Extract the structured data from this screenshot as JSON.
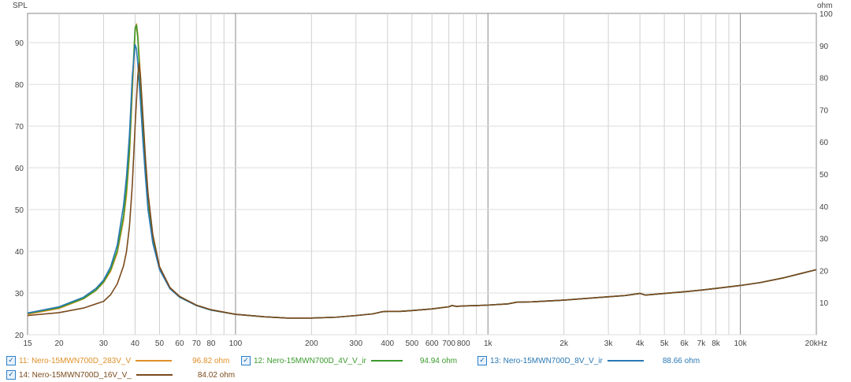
{
  "chart_data": {
    "type": "line",
    "xscale": "log",
    "xlim": [
      15,
      20000
    ],
    "ylim": [
      20,
      97
    ],
    "y2lim": [
      0,
      100
    ],
    "ylabel": "SPL",
    "y2label": "ohm",
    "xticks": [
      {
        "v": 15,
        "t": "15"
      },
      {
        "v": 20,
        "t": "20"
      },
      {
        "v": 30,
        "t": "30"
      },
      {
        "v": 40,
        "t": "40"
      },
      {
        "v": 50,
        "t": "50"
      },
      {
        "v": 60,
        "t": "60"
      },
      {
        "v": 70,
        "t": "70"
      },
      {
        "v": 80,
        "t": "80"
      },
      {
        "v": 100,
        "t": "100"
      },
      {
        "v": 200,
        "t": "200"
      },
      {
        "v": 300,
        "t": "300"
      },
      {
        "v": 400,
        "t": "400"
      },
      {
        "v": 500,
        "t": "500"
      },
      {
        "v": 600,
        "t": "600"
      },
      {
        "v": 700,
        "t": "700"
      },
      {
        "v": 800,
        "t": "800"
      },
      {
        "v": 1000,
        "t": "1k"
      },
      {
        "v": 2000,
        "t": "2k"
      },
      {
        "v": 3000,
        "t": "3k"
      },
      {
        "v": 4000,
        "t": "4k"
      },
      {
        "v": 5000,
        "t": "5k"
      },
      {
        "v": 6000,
        "t": "6k"
      },
      {
        "v": 7000,
        "t": "7k"
      },
      {
        "v": 8000,
        "t": "8k"
      },
      {
        "v": 10000,
        "t": "10k"
      },
      {
        "v": 20000,
        "t": "20kHz"
      }
    ],
    "yticks": [
      20,
      30,
      40,
      50,
      60,
      70,
      80,
      90
    ],
    "y2ticks": [
      10,
      20,
      30,
      40,
      50,
      60,
      70,
      80,
      90,
      100
    ],
    "grid": true,
    "series": [
      {
        "id": "11",
        "name": "11: Nero-15MWN700D_283V_V",
        "value": "96.82 ohm",
        "color": "#e0902a",
        "points": [
          [
            15,
            24.9
          ],
          [
            20,
            26.3
          ],
          [
            25,
            28.6
          ],
          [
            28,
            30.6
          ],
          [
            30,
            32.5
          ],
          [
            32,
            35.2
          ],
          [
            34,
            39.6
          ],
          [
            36,
            47.5
          ],
          [
            37,
            53.5
          ],
          [
            38,
            63
          ],
          [
            39,
            78
          ],
          [
            40,
            92.5
          ],
          [
            40.5,
            94.5
          ],
          [
            41,
            92
          ],
          [
            42,
            82
          ],
          [
            43,
            70
          ],
          [
            44,
            60
          ],
          [
            45,
            52
          ],
          [
            47,
            43
          ],
          [
            50,
            36
          ],
          [
            55,
            31.2
          ],
          [
            60,
            29.1
          ],
          [
            70,
            27.0
          ],
          [
            80,
            25.9
          ],
          [
            100,
            24.9
          ],
          [
            130,
            24.3
          ],
          [
            160,
            24.0
          ],
          [
            200,
            24.0
          ],
          [
            250,
            24.2
          ],
          [
            300,
            24.6
          ],
          [
            350,
            25.0
          ],
          [
            380,
            25.5
          ],
          [
            400,
            25.6
          ],
          [
            450,
            25.6
          ],
          [
            500,
            25.8
          ],
          [
            600,
            26.2
          ],
          [
            700,
            26.7
          ],
          [
            720,
            27.0
          ],
          [
            750,
            26.8
          ],
          [
            800,
            26.9
          ],
          [
            900,
            27.0
          ],
          [
            1000,
            27.1
          ],
          [
            1200,
            27.4
          ],
          [
            1300,
            27.8
          ],
          [
            1500,
            27.9
          ],
          [
            2000,
            28.3
          ],
          [
            3000,
            29.1
          ],
          [
            3500,
            29.4
          ],
          [
            4000,
            29.9
          ],
          [
            4200,
            29.5
          ],
          [
            5000,
            29.9
          ],
          [
            6000,
            30.3
          ],
          [
            7000,
            30.7
          ],
          [
            8000,
            31.1
          ],
          [
            10000,
            31.8
          ],
          [
            12000,
            32.5
          ],
          [
            15000,
            33.7
          ],
          [
            20000,
            35.6
          ]
        ]
      },
      {
        "id": "12",
        "name": "12: Nero-15MWN700D_4V_V_ir",
        "value": "94.94 ohm",
        "color": "#3a9a2c",
        "points": [
          [
            15,
            25.1
          ],
          [
            20,
            26.5
          ],
          [
            25,
            28.7
          ],
          [
            28,
            30.7
          ],
          [
            30,
            32.7
          ],
          [
            32,
            35.6
          ],
          [
            34,
            40.2
          ],
          [
            36,
            48.5
          ],
          [
            37,
            55
          ],
          [
            38,
            64.5
          ],
          [
            39,
            80
          ],
          [
            40,
            93.5
          ],
          [
            40.5,
            94.2
          ],
          [
            41,
            91
          ],
          [
            42,
            80
          ],
          [
            43,
            68.5
          ],
          [
            44,
            59
          ],
          [
            45,
            51
          ],
          [
            47,
            42.5
          ],
          [
            50,
            35.8
          ],
          [
            55,
            31.1
          ],
          [
            60,
            29.0
          ],
          [
            70,
            27.0
          ],
          [
            80,
            25.9
          ],
          [
            100,
            24.9
          ],
          [
            130,
            24.3
          ],
          [
            160,
            24.0
          ],
          [
            200,
            24.0
          ],
          [
            250,
            24.2
          ],
          [
            300,
            24.6
          ],
          [
            350,
            25.0
          ],
          [
            380,
            25.5
          ],
          [
            400,
            25.6
          ],
          [
            450,
            25.6
          ],
          [
            500,
            25.8
          ],
          [
            600,
            26.2
          ],
          [
            700,
            26.7
          ],
          [
            720,
            27.0
          ],
          [
            750,
            26.8
          ],
          [
            800,
            26.9
          ],
          [
            900,
            27.0
          ],
          [
            1000,
            27.1
          ],
          [
            1200,
            27.4
          ],
          [
            1300,
            27.8
          ],
          [
            1500,
            27.9
          ],
          [
            2000,
            28.3
          ],
          [
            3000,
            29.1
          ],
          [
            3500,
            29.4
          ],
          [
            4000,
            29.9
          ],
          [
            4200,
            29.5
          ],
          [
            5000,
            29.9
          ],
          [
            6000,
            30.3
          ],
          [
            7000,
            30.7
          ],
          [
            8000,
            31.1
          ],
          [
            10000,
            31.8
          ],
          [
            12000,
            32.5
          ],
          [
            15000,
            33.7
          ],
          [
            20000,
            35.6
          ]
        ]
      },
      {
        "id": "13",
        "name": "13: Nero-15MWN700D_8V_V_ir",
        "value": "88.66 ohm",
        "color": "#2a78b4",
        "points": [
          [
            15,
            25.2
          ],
          [
            20,
            26.7
          ],
          [
            25,
            29.0
          ],
          [
            28,
            31.1
          ],
          [
            30,
            33.1
          ],
          [
            32,
            36.3
          ],
          [
            34,
            41.5
          ],
          [
            36,
            51
          ],
          [
            37,
            58
          ],
          [
            38,
            68
          ],
          [
            39,
            82
          ],
          [
            40,
            89.5
          ],
          [
            40.5,
            88.5
          ],
          [
            41,
            85
          ],
          [
            42,
            76
          ],
          [
            43,
            66
          ],
          [
            44,
            57.5
          ],
          [
            45,
            50
          ],
          [
            47,
            42
          ],
          [
            50,
            35.6
          ],
          [
            55,
            31.0
          ],
          [
            60,
            29.0
          ],
          [
            70,
            27.0
          ],
          [
            80,
            25.9
          ],
          [
            100,
            24.9
          ],
          [
            130,
            24.3
          ],
          [
            160,
            24.0
          ],
          [
            200,
            24.0
          ],
          [
            250,
            24.2
          ],
          [
            300,
            24.6
          ],
          [
            350,
            25.0
          ],
          [
            380,
            25.5
          ],
          [
            400,
            25.6
          ],
          [
            450,
            25.6
          ],
          [
            500,
            25.8
          ],
          [
            600,
            26.2
          ],
          [
            700,
            26.7
          ],
          [
            720,
            27.0
          ],
          [
            750,
            26.8
          ],
          [
            800,
            26.9
          ],
          [
            900,
            27.0
          ],
          [
            1000,
            27.1
          ],
          [
            1200,
            27.4
          ],
          [
            1300,
            27.8
          ],
          [
            1500,
            27.9
          ],
          [
            2000,
            28.3
          ],
          [
            3000,
            29.1
          ],
          [
            3500,
            29.4
          ],
          [
            4000,
            29.9
          ],
          [
            4200,
            29.5
          ],
          [
            5000,
            29.9
          ],
          [
            6000,
            30.3
          ],
          [
            7000,
            30.7
          ],
          [
            8000,
            31.1
          ],
          [
            10000,
            31.8
          ],
          [
            12000,
            32.5
          ],
          [
            15000,
            33.7
          ],
          [
            20000,
            35.6
          ]
        ]
      },
      {
        "id": "14",
        "name": "14: Nero-15MWN700D_16V_V_",
        "value": "84.02 ohm",
        "color": "#7a4a1c",
        "points": [
          [
            15,
            24.6
          ],
          [
            20,
            25.3
          ],
          [
            25,
            26.4
          ],
          [
            30,
            28.0
          ],
          [
            32,
            29.6
          ],
          [
            34,
            32.2
          ],
          [
            36,
            36.5
          ],
          [
            37,
            40
          ],
          [
            38,
            46
          ],
          [
            39,
            56
          ],
          [
            40,
            70
          ],
          [
            41,
            82
          ],
          [
            41.5,
            85
          ],
          [
            42,
            82
          ],
          [
            43,
            72
          ],
          [
            44,
            62
          ],
          [
            45,
            54
          ],
          [
            47,
            44
          ],
          [
            50,
            36.3
          ],
          [
            55,
            31.3
          ],
          [
            60,
            29.2
          ],
          [
            70,
            27.1
          ],
          [
            80,
            26.0
          ],
          [
            100,
            24.9
          ],
          [
            130,
            24.3
          ],
          [
            160,
            24.0
          ],
          [
            200,
            24.0
          ],
          [
            250,
            24.2
          ],
          [
            300,
            24.6
          ],
          [
            350,
            25.0
          ],
          [
            380,
            25.5
          ],
          [
            400,
            25.6
          ],
          [
            450,
            25.6
          ],
          [
            500,
            25.8
          ],
          [
            600,
            26.2
          ],
          [
            700,
            26.7
          ],
          [
            720,
            27.0
          ],
          [
            750,
            26.8
          ],
          [
            800,
            26.9
          ],
          [
            900,
            27.0
          ],
          [
            1000,
            27.1
          ],
          [
            1200,
            27.4
          ],
          [
            1300,
            27.8
          ],
          [
            1500,
            27.9
          ],
          [
            2000,
            28.3
          ],
          [
            3000,
            29.1
          ],
          [
            3500,
            29.4
          ],
          [
            4000,
            29.9
          ],
          [
            4200,
            29.5
          ],
          [
            5000,
            29.9
          ],
          [
            6000,
            30.3
          ],
          [
            7000,
            30.7
          ],
          [
            8000,
            31.1
          ],
          [
            10000,
            31.8
          ],
          [
            12000,
            32.5
          ],
          [
            15000,
            33.7
          ],
          [
            20000,
            35.6
          ]
        ]
      }
    ]
  },
  "legend": {
    "checkmark": "✓",
    "items": [
      {
        "name": "11: Nero-15MWN700D_283V_V",
        "value": "96.82 ohm",
        "color": "#e0902a"
      },
      {
        "name": "12: Nero-15MWN700D_4V_V_ir",
        "value": "94.94 ohm",
        "color": "#3a9a2c"
      },
      {
        "name": "13: Nero-15MWN700D_8V_V_ir",
        "value": "88.66 ohm",
        "color": "#2a78b4"
      },
      {
        "name": "14: Nero-15MWN700D_16V_V_",
        "value": "84.02 ohm",
        "color": "#7a4a1c"
      }
    ]
  }
}
